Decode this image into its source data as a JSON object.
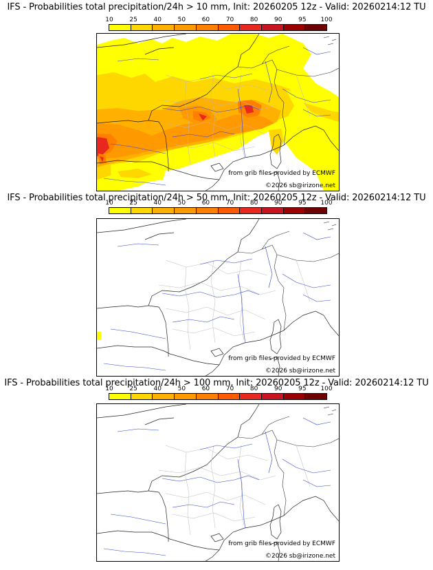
{
  "legend": {
    "levels": [
      "10",
      "25",
      "40",
      "50",
      "60",
      "70",
      "80",
      "90",
      "95",
      "100"
    ],
    "colors": [
      "#ffff00",
      "#ffd700",
      "#ffb000",
      "#ff9900",
      "#ff7f00",
      "#ff5a00",
      "#e8281e",
      "#c8141e",
      "#9b0000",
      "#6e0000"
    ]
  },
  "credits": {
    "source": "from grib files provided by ECMWF",
    "copyright": "©2026 sb@irizone.net"
  },
  "panels": [
    {
      "title": "IFS - Probabilities total precipitation/24h > 10 mm, Init: 20260205 12z - Valid: 20260214:12 TU",
      "threshold": "> 10 mm"
    },
    {
      "title": "IFS - Probabilities total precipitation/24h > 50 mm, Init: 20260205 12z - Valid: 20260214:12 TU",
      "threshold": "> 50 mm"
    },
    {
      "title": "IFS - Probabilities total precipitation/24h > 100 mm, Init: 20260205 12z - Valid: 20260214:12 TU",
      "threshold": "> 100 mm"
    }
  ]
}
